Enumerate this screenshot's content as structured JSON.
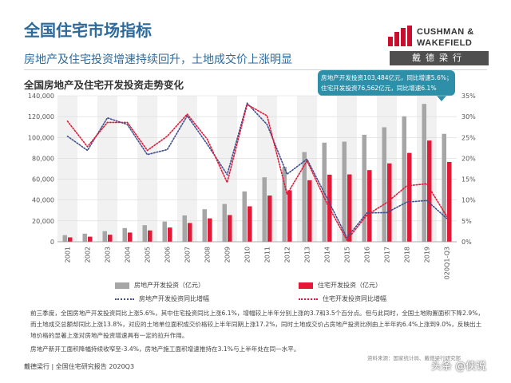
{
  "header": {
    "title": "全国住宅市场指标",
    "subtitle": "房地产及住宅投资增速持续回升，土地成交价上涨明显"
  },
  "logo": {
    "line1": "CUSHMAN &",
    "line2": "WAKEFIELD",
    "chinese": "戴德梁行",
    "accent_color": "#c8102e"
  },
  "callout": {
    "line1": "房地产开发投资103,484亿元，同比增速5.6%；",
    "line2": "住宅开发投资76,562亿元，同比增速6.1%"
  },
  "chart_data": {
    "type": "bar",
    "title": "全国房地产及住宅开发投资走势变化",
    "categories": [
      "2001",
      "2002",
      "2003",
      "2004",
      "2005",
      "2006",
      "2007",
      "2008",
      "2009",
      "2010",
      "2011",
      "2012",
      "2013",
      "2014",
      "2015",
      "2016",
      "2017",
      "2018",
      "2019",
      "2020Q1-Q3"
    ],
    "y_left": {
      "min": 0,
      "max": 140000,
      "step": 20000,
      "tick_labels": [
        "0",
        "20,000",
        "40,000",
        "60,000",
        "80,000",
        "100,000",
        "120,000",
        "140,000"
      ]
    },
    "y_right": {
      "min": 0,
      "max": 35,
      "step": 5,
      "tick_labels": [
        "0%",
        "5%",
        "10%",
        "15%",
        "20%",
        "25%",
        "30%",
        "35%"
      ]
    },
    "grid": true,
    "legend_position": "bottom",
    "series": [
      {
        "name": "房地产开发投资（亿元）",
        "kind": "bar",
        "axis": "left",
        "color": "#a6a6a6",
        "values": [
          6344,
          7791,
          10154,
          13158,
          15909,
          19423,
          25289,
          31203,
          36242,
          48259,
          61797,
          71804,
          86013,
          95036,
          95979,
          102581,
          109799,
          120264,
          132194,
          103484
        ]
      },
      {
        "name": "住宅开发投资（亿元）",
        "kind": "bar",
        "axis": "left",
        "color": "#e31937",
        "values": [
          4217,
          4902,
          6777,
          8837,
          10861,
          13638,
          18005,
          22441,
          25614,
          34026,
          44320,
          49374,
          58951,
          64352,
          64595,
          68704,
          75148,
          85192,
          97071,
          76562
        ]
      },
      {
        "name": "房地产开发投资同比增幅",
        "kind": "line",
        "axis": "right",
        "color": "#3d4f8f",
        "values": [
          25.3,
          21.9,
          29.7,
          28.1,
          20.9,
          22.1,
          30.2,
          23.4,
          16.1,
          33.2,
          28.1,
          16.2,
          19.8,
          10.5,
          1.0,
          6.9,
          7.0,
          9.5,
          9.9,
          5.6
        ]
      },
      {
        "name": "住宅开发投资同比增幅",
        "kind": "line",
        "axis": "right",
        "color": "#e31937",
        "values": [
          28.9,
          22.8,
          28.6,
          28.6,
          21.9,
          25.3,
          30.6,
          24.6,
          14.2,
          32.9,
          30.2,
          11.4,
          19.4,
          9.2,
          0.4,
          6.4,
          9.4,
          13.4,
          13.9,
          6.1
        ]
      }
    ]
  },
  "body_text": {
    "paragraph1": "前三季度，全国房地产开发投资同比上涨5.6%，其中住宅投资同比上涨6.1%，增幅较上半年分别上涨的3.7和3.5个百分点。但与此同时，全国土地购置面积下降2.9%，而土地成交总额却同比上涨13.8%，对应的土地单位面积成交价格较上半年同期上涨17.2%，同时土地成交价占房地产投资比例由上半年的6.4%上涨到9.0%，反映出土地价格的显著上涨对房地产投资增速具有一定的拉升作用。",
    "paragraph2": "房地产新开工面积降幅持续收窄至-3.4%，房地产施工面积增速推持在3.1%与上半年处在同一水平。"
  },
  "source": "资料来源：国家统计局、戴德梁行研究部",
  "footer": "戴德梁行  |  全国住宅研究报告 2020Q3",
  "watermark": "头条 @侠说"
}
